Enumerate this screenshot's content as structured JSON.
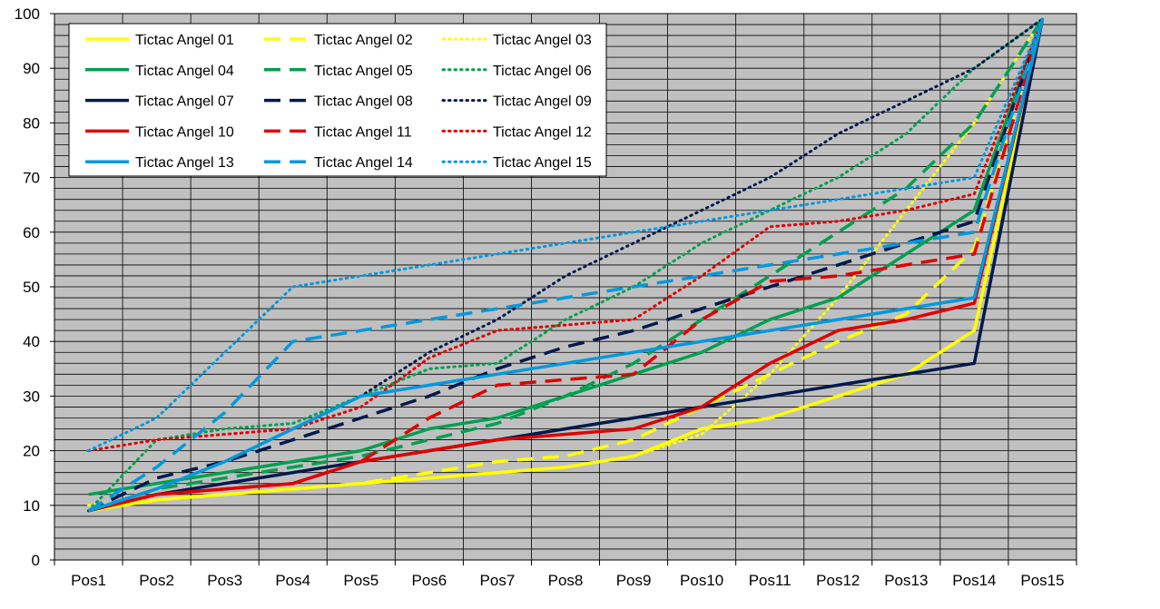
{
  "chart_data": {
    "type": "line",
    "title": "",
    "xlabel": "",
    "ylabel": "",
    "ylim": [
      0,
      100
    ],
    "y_ticks": [
      0,
      10,
      20,
      30,
      40,
      50,
      60,
      70,
      80,
      90,
      100
    ],
    "minor_gridline_step": 2,
    "grid": true,
    "legend_position": "top-left",
    "plot_background": "#c0c0c0",
    "categories": [
      "Pos1",
      "Pos2",
      "Pos3",
      "Pos4",
      "Pos5",
      "Pos6",
      "Pos7",
      "Pos8",
      "Pos9",
      "Pos10",
      "Pos11",
      "Pos12",
      "Pos13",
      "Pos14",
      "Pos15"
    ],
    "series": [
      {
        "name": "Tictac Angel 01",
        "color": "#ffff00",
        "dash": "solid",
        "values": [
          9,
          11,
          12,
          13,
          14,
          15,
          16,
          17,
          19,
          24,
          26,
          30,
          34,
          42,
          99
        ]
      },
      {
        "name": "Tictac Angel 02",
        "color": "#ffff00",
        "dash": "dashed",
        "values": [
          9,
          11,
          12,
          13,
          14,
          16,
          18,
          19,
          22,
          28,
          34,
          40,
          45,
          57,
          99
        ]
      },
      {
        "name": "Tictac Angel 03",
        "color": "#ffff00",
        "dash": "dotted",
        "values": [
          10,
          11,
          12,
          13,
          14,
          15,
          16,
          17,
          19,
          23,
          34,
          48,
          64,
          80,
          99
        ]
      },
      {
        "name": "Tictac Angel 04",
        "color": "#00a050",
        "dash": "solid",
        "values": [
          12,
          14,
          16,
          18,
          20,
          24,
          26,
          30,
          34,
          38,
          44,
          48,
          56,
          64,
          99
        ]
      },
      {
        "name": "Tictac Angel 05",
        "color": "#00a050",
        "dash": "dashed",
        "values": [
          9,
          13,
          15,
          17,
          19,
          22,
          25,
          30,
          36,
          44,
          52,
          60,
          68,
          80,
          99
        ]
      },
      {
        "name": "Tictac Angel 06",
        "color": "#00a050",
        "dash": "dotted",
        "values": [
          9,
          22,
          24,
          25,
          30,
          35,
          36,
          44,
          50,
          58,
          64,
          70,
          78,
          90,
          99
        ]
      },
      {
        "name": "Tictac Angel 07",
        "color": "#001a4d",
        "dash": "solid",
        "values": [
          9,
          12,
          14,
          16,
          18,
          20,
          22,
          24,
          26,
          28,
          30,
          32,
          34,
          36,
          99
        ]
      },
      {
        "name": "Tictac Angel 08",
        "color": "#001a4d",
        "dash": "dashed",
        "values": [
          9,
          15,
          18,
          22,
          26,
          30,
          35,
          39,
          42,
          46,
          50,
          54,
          58,
          62,
          99
        ]
      },
      {
        "name": "Tictac Angel 09",
        "color": "#001a4d",
        "dash": "dotted",
        "values": [
          9,
          13,
          18,
          24,
          30,
          38,
          44,
          52,
          58,
          64,
          70,
          78,
          84,
          90,
          99
        ]
      },
      {
        "name": "Tictac Angel 10",
        "color": "#e00000",
        "dash": "solid",
        "values": [
          9,
          12,
          13,
          14,
          18,
          20,
          22,
          23,
          24,
          28,
          36,
          42,
          44,
          47,
          99
        ]
      },
      {
        "name": "Tictac Angel 11",
        "color": "#e00000",
        "dash": "dashed",
        "values": [
          9,
          12,
          13,
          14,
          18,
          26,
          32,
          33,
          34,
          44,
          51,
          52,
          54,
          56,
          99
        ]
      },
      {
        "name": "Tictac Angel 12",
        "color": "#e00000",
        "dash": "dotted",
        "values": [
          20,
          22,
          23,
          24,
          28,
          37,
          42,
          43,
          44,
          52,
          61,
          62,
          64,
          67,
          99
        ]
      },
      {
        "name": "Tictac Angel 13",
        "color": "#0099dd",
        "dash": "solid",
        "values": [
          9,
          13,
          18,
          24,
          30,
          32,
          34,
          36,
          38,
          40,
          42,
          44,
          46,
          48,
          99
        ]
      },
      {
        "name": "Tictac Angel 14",
        "color": "#0099dd",
        "dash": "dashed",
        "values": [
          9,
          17,
          27,
          40,
          42,
          44,
          46,
          48,
          50,
          52,
          54,
          56,
          58,
          60,
          99
        ]
      },
      {
        "name": "Tictac Angel 15",
        "color": "#0099dd",
        "dash": "dotted",
        "values": [
          20,
          26,
          38,
          50,
          52,
          54,
          56,
          58,
          60,
          62,
          64,
          66,
          68,
          70,
          99
        ]
      }
    ]
  }
}
